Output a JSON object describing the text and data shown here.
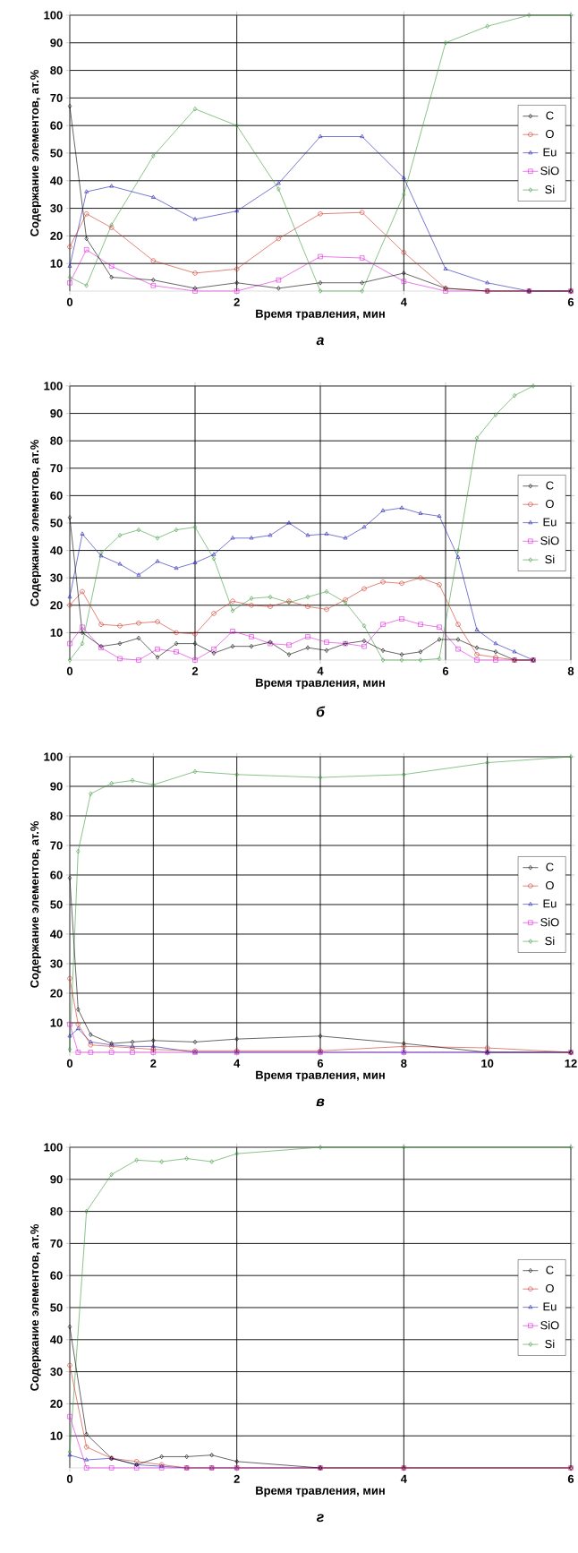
{
  "chart_data": [
    {
      "type": "line",
      "xlabel": "Время травления, мин",
      "ylabel": "Содержание элементов, ат.%",
      "annotations": [
        "а"
      ],
      "x": [
        0,
        0.2,
        0.5,
        1,
        1.5,
        2,
        2.5,
        3,
        3.5,
        4,
        4.5,
        5,
        5.5,
        6
      ],
      "series": [
        {
          "name": "C",
          "color": "#000000",
          "marker": "diamond",
          "values": [
            67,
            19,
            5,
            4,
            1,
            3,
            1,
            3,
            3,
            6.5,
            1,
            0,
            0,
            0
          ]
        },
        {
          "name": "O",
          "color": "#cc3322",
          "marker": "circle",
          "values": [
            16,
            28,
            23,
            11,
            6.5,
            8,
            19,
            28,
            28.5,
            14,
            1,
            0,
            0,
            0
          ]
        },
        {
          "name": "Eu",
          "color": "#1f1fb0",
          "marker": "triangle",
          "values": [
            9,
            36,
            38,
            34,
            26,
            29,
            39,
            56,
            56,
            41,
            8,
            3,
            0,
            0
          ]
        },
        {
          "name": "SiO",
          "color": "#dd22dd",
          "marker": "square",
          "values": [
            3,
            15,
            9,
            2,
            0,
            0,
            4,
            12.5,
            12,
            3.5,
            0,
            0,
            0,
            0
          ]
        },
        {
          "name": "Si",
          "color": "#3c9a3c",
          "marker": "diamond",
          "values": [
            5,
            2,
            24,
            49,
            66,
            60,
            37,
            0,
            0,
            35,
            90,
            96,
            100,
            100
          ]
        }
      ],
      "xlim": [
        0,
        6
      ],
      "xticks": [
        0,
        2,
        4,
        6
      ],
      "ylim": [
        0,
        100
      ],
      "yticks": [
        10,
        20,
        30,
        40,
        50,
        60,
        70,
        80,
        90,
        100
      ],
      "grid": true,
      "legend": "right",
      "line_style": "solid"
    },
    {
      "type": "line",
      "xlabel": "Время травления, мин",
      "ylabel": "Содержание элементов, ат.%",
      "annotations": [
        "б"
      ],
      "x": [
        0,
        0.2,
        0.5,
        0.8,
        1.1,
        1.4,
        1.7,
        2.0,
        2.3,
        2.6,
        2.9,
        3.2,
        3.5,
        3.8,
        4.1,
        4.4,
        4.7,
        5.0,
        5.3,
        5.6,
        5.9,
        6.2,
        6.5,
        6.8,
        7.1,
        7.4
      ],
      "series": [
        {
          "name": "C",
          "color": "#000000",
          "marker": "diamond",
          "values": [
            52,
            10,
            5,
            6,
            8,
            1,
            6,
            6,
            2.5,
            5,
            5,
            6.5,
            2,
            4.5,
            3.5,
            6,
            7,
            3.5,
            2,
            3,
            7.5,
            7.5,
            4.5,
            3,
            0,
            0
          ]
        },
        {
          "name": "O",
          "color": "#cc3322",
          "marker": "circle",
          "values": [
            20,
            25,
            13,
            12.5,
            13.5,
            14,
            10,
            9.5,
            17,
            21.5,
            20,
            19.5,
            21.5,
            19.5,
            18.5,
            22,
            26,
            28.5,
            28,
            30,
            27.5,
            13,
            2,
            1,
            0,
            0
          ]
        },
        {
          "name": "Eu",
          "color": "#1f1fb0",
          "marker": "triangle",
          "values": [
            23,
            46,
            38,
            35,
            31,
            36,
            33.5,
            35.5,
            38.5,
            44.5,
            44.5,
            45.5,
            50,
            45.5,
            46,
            44.5,
            48.5,
            54.5,
            55.5,
            53.5,
            52.5,
            37.5,
            11,
            6,
            3,
            0
          ]
        },
        {
          "name": "SiO",
          "color": "#dd22dd",
          "marker": "square",
          "values": [
            6,
            12,
            4.5,
            0.5,
            0,
            4,
            3,
            0,
            4,
            10.5,
            8.5,
            6,
            5.5,
            8.5,
            6.5,
            6,
            5,
            13,
            15,
            13,
            12,
            4,
            0,
            0,
            0,
            0
          ]
        },
        {
          "name": "Si",
          "color": "#3c9a3c",
          "marker": "diamond",
          "values": [
            0,
            6,
            39,
            45.5,
            47.5,
            44.5,
            47.5,
            48.5,
            37,
            18,
            22.5,
            23,
            21,
            23,
            25,
            21,
            12.5,
            0,
            0,
            0,
            0.5,
            40,
            81,
            89.5,
            96.5,
            100
          ]
        }
      ],
      "xlim": [
        0,
        8
      ],
      "xticks": [
        0,
        2,
        4,
        6,
        8
      ],
      "ylim": [
        0,
        100
      ],
      "yticks": [
        10,
        20,
        30,
        40,
        50,
        60,
        70,
        80,
        90,
        100
      ],
      "grid": true,
      "legend": "right",
      "line_style": "solid"
    },
    {
      "type": "line",
      "xlabel": "Время травления, мин",
      "ylabel": "Содержание элементов, ат.%",
      "annotations": [
        "в"
      ],
      "x": [
        0,
        0.2,
        0.5,
        1,
        1.5,
        2,
        3,
        4,
        6,
        8,
        10,
        12
      ],
      "series": [
        {
          "name": "C",
          "color": "#000000",
          "marker": "diamond",
          "values": [
            59,
            14.5,
            6,
            3,
            3.5,
            4,
            3.5,
            4.5,
            5.5,
            3,
            0,
            0
          ]
        },
        {
          "name": "O",
          "color": "#cc3322",
          "marker": "circle",
          "values": [
            25,
            9.5,
            2.5,
            2,
            1.5,
            1,
            0.5,
            0.5,
            0.5,
            2,
            1.5,
            0
          ]
        },
        {
          "name": "Eu",
          "color": "#1f1fb0",
          "marker": "triangle",
          "values": [
            5.5,
            8,
            3.5,
            2.5,
            2,
            2,
            0,
            0,
            0,
            0,
            0,
            0
          ]
        },
        {
          "name": "SiO",
          "color": "#dd22dd",
          "marker": "square",
          "values": [
            9.5,
            0,
            0,
            0,
            0,
            0,
            0,
            0,
            0,
            0,
            0,
            0
          ]
        },
        {
          "name": "Si",
          "color": "#3c9a3c",
          "marker": "diamond",
          "values": [
            1,
            68,
            87.5,
            91,
            92,
            90.5,
            95,
            94,
            93,
            94,
            98,
            100
          ]
        }
      ],
      "xlim": [
        0,
        12
      ],
      "xticks": [
        0,
        2,
        4,
        6,
        8,
        10,
        12
      ],
      "ylim": [
        0,
        100
      ],
      "yticks": [
        10,
        20,
        30,
        40,
        50,
        60,
        70,
        80,
        90,
        100
      ],
      "grid": true,
      "legend": "right",
      "line_style": "solid"
    },
    {
      "type": "line",
      "xlabel": "Время травления, мин",
      "ylabel": "Содержание элементов, ат.%",
      "annotations": [
        "г"
      ],
      "x": [
        0,
        0.2,
        0.5,
        0.8,
        1.1,
        1.4,
        1.7,
        2,
        3,
        4,
        6
      ],
      "series": [
        {
          "name": "C",
          "color": "#000000",
          "marker": "diamond",
          "values": [
            44,
            10.5,
            3,
            1,
            3.5,
            3.5,
            4,
            2,
            0,
            0,
            0
          ]
        },
        {
          "name": "O",
          "color": "#cc3322",
          "marker": "circle",
          "values": [
            32,
            6.5,
            3,
            2,
            1,
            0,
            0,
            0,
            0,
            0,
            0
          ]
        },
        {
          "name": "Eu",
          "color": "#1f1fb0",
          "marker": "triangle",
          "values": [
            4,
            2.5,
            3,
            1,
            0.5,
            0,
            0,
            0,
            0,
            null,
            null
          ]
        },
        {
          "name": "SiO",
          "color": "#dd22dd",
          "marker": "square",
          "values": [
            16,
            0,
            0,
            0,
            0,
            0,
            0,
            0,
            0,
            0,
            0
          ]
        },
        {
          "name": "Si",
          "color": "#3c9a3c",
          "marker": "diamond",
          "values": [
            5,
            80,
            91.5,
            96,
            95.5,
            96.5,
            95.5,
            98,
            100,
            100,
            100
          ]
        }
      ],
      "xlim": [
        0,
        6
      ],
      "xticks": [
        0,
        2,
        4,
        6
      ],
      "ylim": [
        0,
        100
      ],
      "yticks": [
        10,
        20,
        30,
        40,
        50,
        60,
        70,
        80,
        90,
        100
      ],
      "grid": true,
      "legend": "right",
      "line_style": "solid"
    }
  ]
}
